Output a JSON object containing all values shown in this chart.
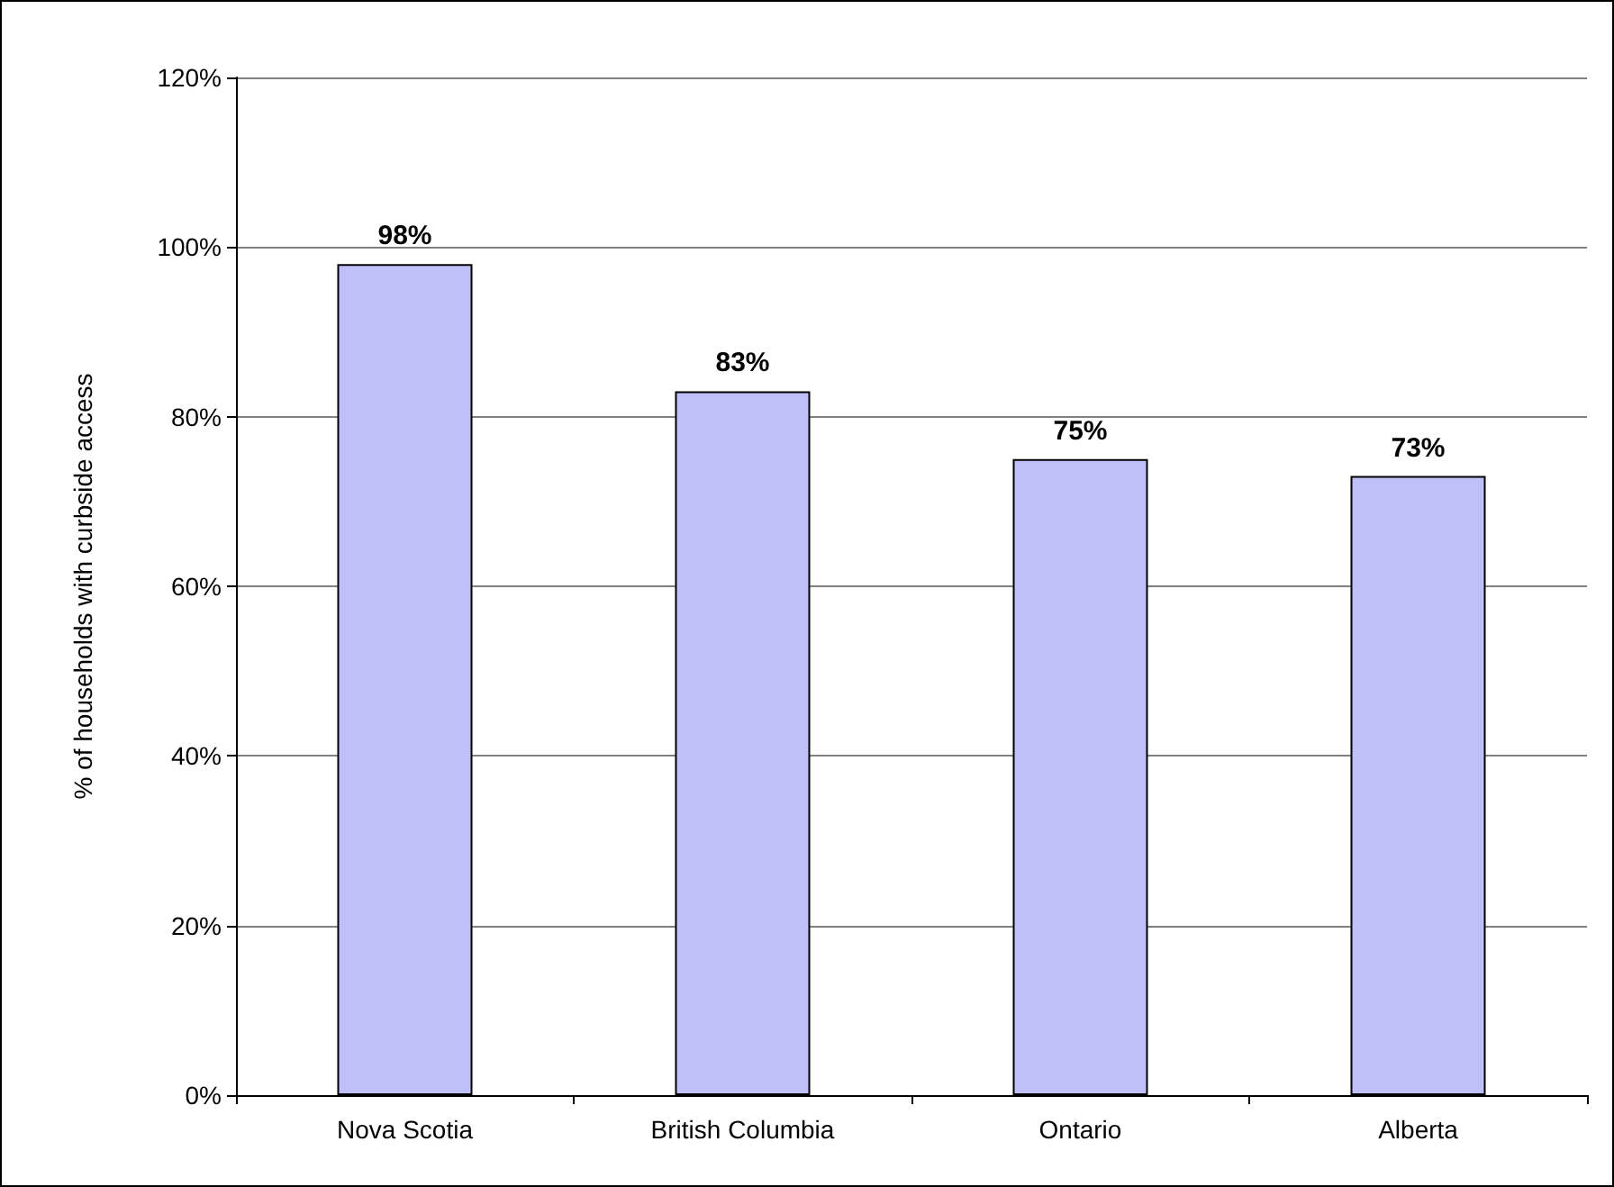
{
  "chart_data": {
    "type": "bar",
    "ylabel": "% of households with curbside access",
    "categories": [
      "Nova Scotia",
      "British Columbia",
      "Ontario",
      "Alberta"
    ],
    "values": [
      98,
      83,
      75,
      73
    ],
    "color": "#c0c0f8",
    "value_labels": [
      "98%",
      "83%",
      "75%",
      "73%"
    ],
    "ylim": [
      0,
      120
    ],
    "yticks": [
      {
        "value": 0,
        "label": "0%"
      },
      {
        "value": 20,
        "label": "20%"
      },
      {
        "value": 40,
        "label": "40%"
      },
      {
        "value": 60,
        "label": "60%"
      },
      {
        "value": 80,
        "label": "80%"
      },
      {
        "value": 100,
        "label": "100%"
      },
      {
        "value": 120,
        "label": "120%"
      }
    ],
    "grid": "y"
  }
}
